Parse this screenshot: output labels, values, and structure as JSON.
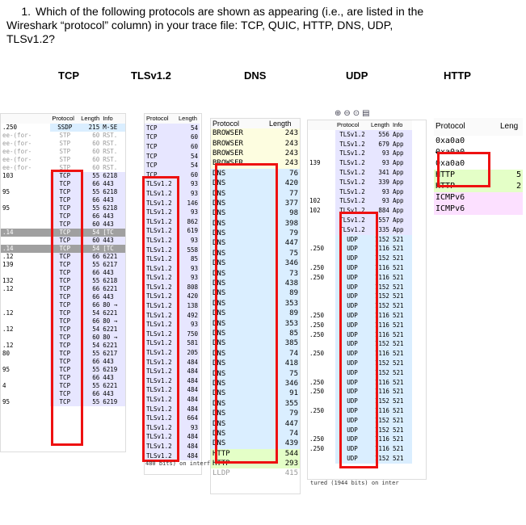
{
  "question": {
    "number": "1.",
    "line1": "Which of the following protocols are shown as appearing (i.e., are listed in the",
    "line2": "Wireshark “protocol” column) in your trace file: TCP, QUIC, HTTP, DNS, UDP,",
    "line3": "TLSv1.2?"
  },
  "headings": {
    "tcp": "TCP",
    "tls": "TLSv1.2",
    "dns": "DNS",
    "udp": "UDP",
    "http": "HTTP"
  },
  "colors": {
    "tcp_bg": "#e7e6ff",
    "udp_bg": "#daeeff",
    "http_bg": "#e4ffc7",
    "icmp_bg": "#fce0ff",
    "stp_bg": "#ffffff",
    "red": "#e11111"
  },
  "panel1": {
    "headers": [
      "Protocol",
      "Length",
      "Info"
    ],
    "rows": [
      {
        "left": ".250",
        "proto": "SSDP",
        "len": "215",
        "info": "M-SE",
        "bg": "#daeeff"
      },
      {
        "left": "ee-(for-",
        "proto": "STP",
        "len": "60",
        "info": "RST.",
        "bg": "#fff",
        "dim": true
      },
      {
        "left": "ee-(for-",
        "proto": "STP",
        "len": "60",
        "info": "RST.",
        "bg": "#fff",
        "dim": true
      },
      {
        "left": "ee-(for-",
        "proto": "STP",
        "len": "60",
        "info": "RST.",
        "bg": "#fff",
        "dim": true
      },
      {
        "left": "ee-(for-",
        "proto": "STP",
        "len": "60",
        "info": "RST.",
        "bg": "#fff",
        "dim": true
      },
      {
        "left": "ee-(for-",
        "proto": "STP",
        "len": "60",
        "info": "RST.",
        "bg": "#fff",
        "dim": true
      },
      {
        "left": "103",
        "proto": "TCP",
        "len": "55",
        "info": "6218",
        "bg": "#e7e6ff"
      },
      {
        "left": "",
        "proto": "TCP",
        "len": "66",
        "info": "443",
        "bg": "#e7e6ff"
      },
      {
        "left": "95",
        "proto": "TCP",
        "len": "55",
        "info": "6218",
        "bg": "#e7e6ff"
      },
      {
        "left": "",
        "proto": "TCP",
        "len": "66",
        "info": "443",
        "bg": "#e7e6ff"
      },
      {
        "left": "95",
        "proto": "TCP",
        "len": "55",
        "info": "6218",
        "bg": "#e7e6ff"
      },
      {
        "left": "",
        "proto": "TCP",
        "len": "66",
        "info": "443",
        "bg": "#e7e6ff"
      },
      {
        "left": "",
        "proto": "TCP",
        "len": "60",
        "info": "443",
        "bg": "#e7e6ff"
      },
      {
        "left": ".14",
        "proto": "TCP",
        "len": "54",
        "info": "[TC",
        "bg": "#a0a0a0",
        "dark": true
      },
      {
        "left": "",
        "proto": "TCP",
        "len": "60",
        "info": "443",
        "bg": "#e7e6ff"
      },
      {
        "left": ".14",
        "proto": "TCP",
        "len": "54",
        "info": "[TC",
        "bg": "#a0a0a0",
        "dark": true
      },
      {
        "left": ".12",
        "proto": "TCP",
        "len": "66",
        "info": "6221",
        "bg": "#e7e6ff"
      },
      {
        "left": "139",
        "proto": "TCP",
        "len": "55",
        "info": "6217",
        "bg": "#e7e6ff"
      },
      {
        "left": "",
        "proto": "TCP",
        "len": "66",
        "info": "443",
        "bg": "#e7e6ff"
      },
      {
        "left": "132",
        "proto": "TCP",
        "len": "55",
        "info": "6218",
        "bg": "#e7e6ff"
      },
      {
        "left": ".12",
        "proto": "TCP",
        "len": "66",
        "info": "6221",
        "bg": "#e7e6ff"
      },
      {
        "left": "",
        "proto": "TCP",
        "len": "66",
        "info": "443",
        "bg": "#e7e6ff"
      },
      {
        "left": "",
        "proto": "TCP",
        "len": "66",
        "info": "80 →",
        "bg": "#e7e6ff"
      },
      {
        "left": ".12",
        "proto": "TCP",
        "len": "54",
        "info": "6221",
        "bg": "#e7e6ff"
      },
      {
        "left": "",
        "proto": "TCP",
        "len": "66",
        "info": "80 →",
        "bg": "#e7e6ff"
      },
      {
        "left": ".12",
        "proto": "TCP",
        "len": "54",
        "info": "6221",
        "bg": "#e7e6ff"
      },
      {
        "left": "",
        "proto": "TCP",
        "len": "60",
        "info": "80 →",
        "bg": "#e7e6ff"
      },
      {
        "left": ".12",
        "proto": "TCP",
        "len": "54",
        "info": "6221",
        "bg": "#e7e6ff"
      },
      {
        "left": "80",
        "proto": "TCP",
        "len": "55",
        "info": "6217",
        "bg": "#e7e6ff"
      },
      {
        "left": "",
        "proto": "TCP",
        "len": "66",
        "info": "443",
        "bg": "#e7e6ff"
      },
      {
        "left": "95",
        "proto": "TCP",
        "len": "55",
        "info": "6219",
        "bg": "#e7e6ff"
      },
      {
        "left": "",
        "proto": "TCP",
        "len": "66",
        "info": "443",
        "bg": "#e7e6ff"
      },
      {
        "left": "4",
        "proto": "TCP",
        "len": "55",
        "info": "6221",
        "bg": "#e7e6ff"
      },
      {
        "left": "",
        "proto": "TCP",
        "len": "66",
        "info": "443",
        "bg": "#e7e6ff"
      },
      {
        "left": "95",
        "proto": "TCP",
        "len": "55",
        "info": "6219",
        "bg": "#e7e6ff"
      }
    ]
  },
  "panel2": {
    "headers": [
      "Protocol",
      "Length"
    ],
    "rows": [
      {
        "proto": "TCP",
        "len": "54",
        "bg": "#e7e6ff"
      },
      {
        "proto": "TCP",
        "len": "60",
        "bg": "#e7e6ff"
      },
      {
        "proto": "TCP",
        "len": "60",
        "bg": "#e7e6ff"
      },
      {
        "proto": "TCP",
        "len": "54",
        "bg": "#e7e6ff"
      },
      {
        "proto": "TCP",
        "len": "54",
        "bg": "#e7e6ff"
      },
      {
        "proto": "TCP",
        "len": "60",
        "bg": "#e7e6ff"
      },
      {
        "proto": "TLSv1.2",
        "len": "93",
        "bg": "#e7e6ff"
      },
      {
        "proto": "TLSv1.2",
        "len": "93",
        "bg": "#e7e6ff"
      },
      {
        "proto": "TLSv1.2",
        "len": "146",
        "bg": "#e7e6ff"
      },
      {
        "proto": "TLSv1.2",
        "len": "93",
        "bg": "#e7e6ff"
      },
      {
        "proto": "TLSv1.2",
        "len": "862",
        "bg": "#e7e6ff"
      },
      {
        "proto": "TLSv1.2",
        "len": "619",
        "bg": "#e7e6ff"
      },
      {
        "proto": "TLSv1.2",
        "len": "93",
        "bg": "#e7e6ff"
      },
      {
        "proto": "TLSv1.2",
        "len": "558",
        "bg": "#e7e6ff"
      },
      {
        "proto": "TLSv1.2",
        "len": "85",
        "bg": "#e7e6ff"
      },
      {
        "proto": "TLSv1.2",
        "len": "93",
        "bg": "#e7e6ff"
      },
      {
        "proto": "TLSv1.2",
        "len": "93",
        "bg": "#e7e6ff"
      },
      {
        "proto": "TLSv1.2",
        "len": "808",
        "bg": "#e7e6ff"
      },
      {
        "proto": "TLSv1.2",
        "len": "420",
        "bg": "#e7e6ff"
      },
      {
        "proto": "TLSv1.2",
        "len": "138",
        "bg": "#e7e6ff"
      },
      {
        "proto": "TLSv1.2",
        "len": "492",
        "bg": "#e7e6ff"
      },
      {
        "proto": "TLSv1.2",
        "len": "93",
        "bg": "#e7e6ff"
      },
      {
        "proto": "TLSv1.2",
        "len": "750",
        "bg": "#e7e6ff"
      },
      {
        "proto": "TLSv1.2",
        "len": "581",
        "bg": "#e7e6ff"
      },
      {
        "proto": "TLSv1.2",
        "len": "205",
        "bg": "#e7e6ff"
      },
      {
        "proto": "TLSv1.2",
        "len": "484",
        "bg": "#e7e6ff"
      },
      {
        "proto": "TLSv1.2",
        "len": "484",
        "bg": "#e7e6ff"
      },
      {
        "proto": "TLSv1.2",
        "len": "484",
        "bg": "#e7e6ff"
      },
      {
        "proto": "TLSv1.2",
        "len": "484",
        "bg": "#e7e6ff"
      },
      {
        "proto": "TLSv1.2",
        "len": "484",
        "bg": "#e7e6ff"
      },
      {
        "proto": "TLSv1.2",
        "len": "484",
        "bg": "#e7e6ff"
      },
      {
        "proto": "TLSv1.2",
        "len": "664",
        "bg": "#e7e6ff"
      },
      {
        "proto": "TLSv1.2",
        "len": "93",
        "bg": "#e7e6ff"
      },
      {
        "proto": "TLSv1.2",
        "len": "484",
        "bg": "#e7e6ff"
      },
      {
        "proto": "TLSv1.2",
        "len": "484",
        "bg": "#e7e6ff"
      },
      {
        "proto": "TLSv1.2",
        "len": "484",
        "bg": "#e7e6ff"
      }
    ],
    "footer": "480 bits) on interf"
  },
  "panel3": {
    "headers": [
      "Protocol",
      "Length"
    ],
    "rows": [
      {
        "proto": "BROWSER",
        "len": "243",
        "bg": "#fdfde0"
      },
      {
        "proto": "BROWSER",
        "len": "243",
        "bg": "#fdfde0"
      },
      {
        "proto": "BROWSER",
        "len": "243",
        "bg": "#fdfde0"
      },
      {
        "proto": "BROWSER",
        "len": "243",
        "bg": "#fdfde0"
      },
      {
        "proto": "DNS",
        "len": "76",
        "bg": "#daeeff"
      },
      {
        "proto": "DNS",
        "len": "420",
        "bg": "#daeeff"
      },
      {
        "proto": "DNS",
        "len": "77",
        "bg": "#daeeff"
      },
      {
        "proto": "DNS",
        "len": "377",
        "bg": "#daeeff"
      },
      {
        "proto": "DNS",
        "len": "98",
        "bg": "#daeeff"
      },
      {
        "proto": "DNS",
        "len": "398",
        "bg": "#daeeff"
      },
      {
        "proto": "DNS",
        "len": "79",
        "bg": "#daeeff"
      },
      {
        "proto": "DNS",
        "len": "447",
        "bg": "#daeeff"
      },
      {
        "proto": "DNS",
        "len": "75",
        "bg": "#daeeff"
      },
      {
        "proto": "DNS",
        "len": "346",
        "bg": "#daeeff"
      },
      {
        "proto": "DNS",
        "len": "73",
        "bg": "#daeeff"
      },
      {
        "proto": "DNS",
        "len": "438",
        "bg": "#daeeff"
      },
      {
        "proto": "DNS",
        "len": "89",
        "bg": "#daeeff"
      },
      {
        "proto": "DNS",
        "len": "353",
        "bg": "#daeeff"
      },
      {
        "proto": "DNS",
        "len": "89",
        "bg": "#daeeff"
      },
      {
        "proto": "DNS",
        "len": "353",
        "bg": "#daeeff"
      },
      {
        "proto": "DNS",
        "len": "85",
        "bg": "#daeeff"
      },
      {
        "proto": "DNS",
        "len": "385",
        "bg": "#daeeff"
      },
      {
        "proto": "DNS",
        "len": "74",
        "bg": "#daeeff"
      },
      {
        "proto": "DNS",
        "len": "418",
        "bg": "#daeeff"
      },
      {
        "proto": "DNS",
        "len": "75",
        "bg": "#daeeff"
      },
      {
        "proto": "DNS",
        "len": "346",
        "bg": "#daeeff"
      },
      {
        "proto": "DNS",
        "len": "91",
        "bg": "#daeeff"
      },
      {
        "proto": "DNS",
        "len": "355",
        "bg": "#daeeff"
      },
      {
        "proto": "DNS",
        "len": "79",
        "bg": "#daeeff"
      },
      {
        "proto": "DNS",
        "len": "447",
        "bg": "#daeeff"
      },
      {
        "proto": "DNS",
        "len": "74",
        "bg": "#daeeff"
      },
      {
        "proto": "DNS",
        "len": "439",
        "bg": "#daeeff"
      },
      {
        "proto": "HTTP",
        "len": "544",
        "bg": "#e4ffc7"
      },
      {
        "proto": "HTTP",
        "len": "293",
        "bg": "#e4ffc7"
      },
      {
        "proto": "LLDP",
        "len": "415",
        "bg": "#fff",
        "dim": true
      }
    ]
  },
  "panel4": {
    "headers": [
      "Protocol",
      "Length",
      "Info"
    ],
    "rows": [
      {
        "left": "",
        "proto": "TLSv1.2",
        "len": "556",
        "info": "App",
        "bg": "#e7e6ff"
      },
      {
        "left": "",
        "proto": "TLSv1.2",
        "len": "679",
        "info": "App",
        "bg": "#e7e6ff"
      },
      {
        "left": "",
        "proto": "TLSv1.2",
        "len": "93",
        "info": "App",
        "bg": "#e7e6ff"
      },
      {
        "left": "139",
        "proto": "TLSv1.2",
        "len": "93",
        "info": "App",
        "bg": "#e7e6ff"
      },
      {
        "left": "",
        "proto": "TLSv1.2",
        "len": "341",
        "info": "App",
        "bg": "#e7e6ff"
      },
      {
        "left": "",
        "proto": "TLSv1.2",
        "len": "339",
        "info": "App",
        "bg": "#e7e6ff"
      },
      {
        "left": "",
        "proto": "TLSv1.2",
        "len": "93",
        "info": "App",
        "bg": "#e7e6ff"
      },
      {
        "left": "102",
        "proto": "TLSv1.2",
        "len": "93",
        "info": "App",
        "bg": "#e7e6ff"
      },
      {
        "left": "102",
        "proto": "TLSv1.2",
        "len": "884",
        "info": "App",
        "bg": "#e7e6ff"
      },
      {
        "left": "",
        "proto": "TLSv1.2",
        "len": "557",
        "info": "App",
        "bg": "#e7e6ff"
      },
      {
        "left": "",
        "proto": "TLSv1.2",
        "len": "335",
        "info": "App",
        "bg": "#e7e6ff"
      },
      {
        "left": "",
        "proto": "UDP",
        "len": "1152",
        "info": "521",
        "bg": "#daeeff"
      },
      {
        "left": ".250",
        "proto": "UDP",
        "len": "1116",
        "info": "521",
        "bg": "#daeeff"
      },
      {
        "left": "",
        "proto": "UDP",
        "len": "1152",
        "info": "521",
        "bg": "#daeeff"
      },
      {
        "left": ".250",
        "proto": "UDP",
        "len": "1116",
        "info": "521",
        "bg": "#daeeff"
      },
      {
        "left": ".250",
        "proto": "UDP",
        "len": "1116",
        "info": "521",
        "bg": "#daeeff"
      },
      {
        "left": "",
        "proto": "UDP",
        "len": "1152",
        "info": "521",
        "bg": "#daeeff"
      },
      {
        "left": "",
        "proto": "UDP",
        "len": "1152",
        "info": "521",
        "bg": "#daeeff"
      },
      {
        "left": "",
        "proto": "UDP",
        "len": "1152",
        "info": "521",
        "bg": "#daeeff"
      },
      {
        "left": ".250",
        "proto": "UDP",
        "len": "1116",
        "info": "521",
        "bg": "#daeeff"
      },
      {
        "left": ".250",
        "proto": "UDP",
        "len": "1116",
        "info": "521",
        "bg": "#daeeff"
      },
      {
        "left": ".250",
        "proto": "UDP",
        "len": "1116",
        "info": "521",
        "bg": "#daeeff"
      },
      {
        "left": "",
        "proto": "UDP",
        "len": "1152",
        "info": "521",
        "bg": "#daeeff"
      },
      {
        "left": ".250",
        "proto": "UDP",
        "len": "1116",
        "info": "521",
        "bg": "#daeeff"
      },
      {
        "left": "",
        "proto": "UDP",
        "len": "1152",
        "info": "521",
        "bg": "#daeeff"
      },
      {
        "left": "",
        "proto": "UDP",
        "len": "1152",
        "info": "521",
        "bg": "#daeeff"
      },
      {
        "left": ".250",
        "proto": "UDP",
        "len": "1116",
        "info": "521",
        "bg": "#daeeff"
      },
      {
        "left": ".250",
        "proto": "UDP",
        "len": "1116",
        "info": "521",
        "bg": "#daeeff"
      },
      {
        "left": "",
        "proto": "UDP",
        "len": "1152",
        "info": "521",
        "bg": "#daeeff"
      },
      {
        "left": ".250",
        "proto": "UDP",
        "len": "1116",
        "info": "521",
        "bg": "#daeeff"
      },
      {
        "left": "",
        "proto": "UDP",
        "len": "1152",
        "info": "521",
        "bg": "#daeeff"
      },
      {
        "left": "",
        "proto": "UDP",
        "len": "1152",
        "info": "521",
        "bg": "#daeeff"
      },
      {
        "left": ".250",
        "proto": "UDP",
        "len": "1116",
        "info": "521",
        "bg": "#daeeff"
      },
      {
        "left": ".250",
        "proto": "UDP",
        "len": "1116",
        "info": "521",
        "bg": "#daeeff"
      },
      {
        "left": "",
        "proto": "UDP",
        "len": "1152",
        "info": "521",
        "bg": "#daeeff"
      }
    ],
    "footer": "tured (1944 bits) on inter"
  },
  "panel5": {
    "headers": [
      "Protocol",
      "Leng"
    ],
    "rows": [
      {
        "proto": "0xa0a0",
        "len": "",
        "bg": "#fff"
      },
      {
        "proto": "0xa0a0",
        "len": "",
        "bg": "#fff",
        "strike": true
      },
      {
        "proto": "0xa0a0",
        "len": "",
        "bg": "#fff"
      },
      {
        "proto": "HTTP",
        "len": "5",
        "bg": "#e4ffc7"
      },
      {
        "proto": "HTTP",
        "len": "2",
        "bg": "#e4ffc7"
      },
      {
        "proto": "ICMPv6",
        "len": "",
        "bg": "#fce0ff"
      },
      {
        "proto": "ICMPv6",
        "len": "",
        "bg": "#fce0ff"
      }
    ]
  }
}
